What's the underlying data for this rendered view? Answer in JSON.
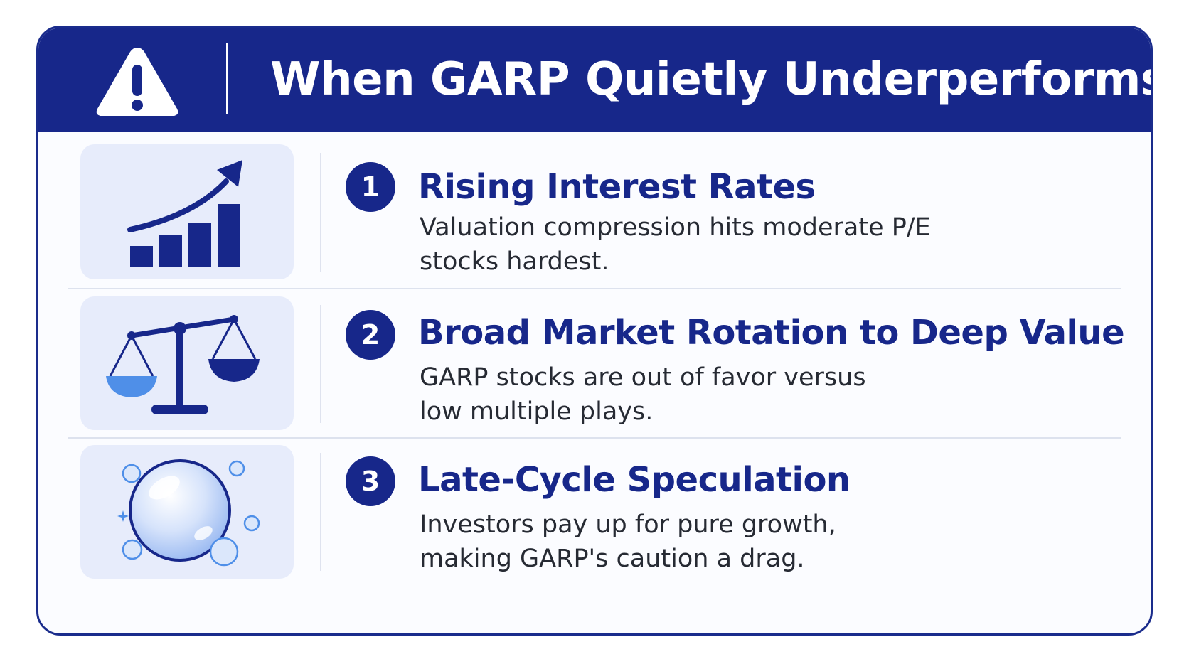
{
  "header": {
    "title": "When GARP Quietly Underperforms",
    "icon": "warning-triangle-icon",
    "background_color": "#17278a"
  },
  "items": [
    {
      "number": "1",
      "title": "Rising Interest Rates",
      "description_line1": "Valuation compression hits moderate P/E",
      "description_line2": "stocks hardest.",
      "icon": "rising-bar-chart-icon"
    },
    {
      "number": "2",
      "title": "Broad Market Rotation to Deep Value",
      "description_line1": "GARP stocks are out of favor versus",
      "description_line2": "low multiple plays.",
      "icon": "balance-scale-icon"
    },
    {
      "number": "3",
      "title": "Late-Cycle Speculation",
      "description_line1": "Investors pay up for pure growth,",
      "description_line2": "making GARP's caution a drag.",
      "icon": "bubble-icon"
    }
  ],
  "colors": {
    "accent": "#17278a",
    "icon_box": "#e7ecfb",
    "text": "#262a33"
  }
}
